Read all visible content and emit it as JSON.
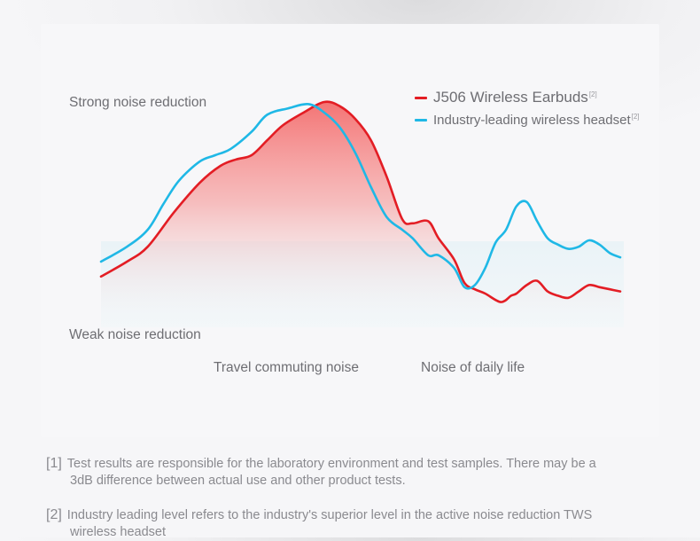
{
  "colors": {
    "earbuds": "#e31d24",
    "headset": "#1fb8e6",
    "fill_top": "#f47474",
    "fill_bottom": "#f6f6f8"
  },
  "chart_data": {
    "type": "line",
    "title": "",
    "ylabel": "",
    "xlabel": "",
    "y_axis_labels": {
      "high": "Strong noise reduction",
      "low": "Weak noise reduction"
    },
    "x_categories": [
      "Travel commuting noise",
      "Noise of daily life"
    ],
    "xlim": [
      0,
      100
    ],
    "ylim": [
      0,
      100
    ],
    "grid": false,
    "legend_position": "top-right",
    "series": [
      {
        "name": "J506 Wireless Earbuds",
        "note_ref": "[2]",
        "color": "#e31d24",
        "filled": true,
        "x": [
          0,
          5,
          9,
          14,
          19,
          23,
          26,
          29,
          32,
          35,
          39,
          43,
          46,
          49,
          52,
          55,
          58,
          60,
          63,
          65,
          68,
          70,
          72,
          74,
          77,
          79,
          80,
          82,
          84,
          86,
          88,
          90,
          92,
          94,
          96,
          98,
          100
        ],
        "y": [
          18,
          25,
          32,
          48,
          62,
          70,
          73,
          75,
          82,
          89,
          95,
          100,
          98,
          92,
          82,
          65,
          45,
          43,
          44,
          36,
          26,
          15,
          12,
          10,
          6,
          9,
          10,
          14,
          16,
          11,
          9,
          8,
          11,
          14,
          13,
          12,
          11
        ]
      },
      {
        "name": "Industry-leading wireless headset",
        "note_ref": "[2]",
        "color": "#1fb8e6",
        "filled": false,
        "x": [
          0,
          5,
          9,
          12,
          15,
          19,
          22,
          25,
          29,
          32,
          36,
          40,
          43,
          46,
          49,
          52,
          55,
          58,
          60,
          63,
          65,
          68,
          70,
          72,
          74,
          76,
          78,
          80,
          82,
          84,
          86,
          88,
          90,
          92,
          94,
          96,
          98,
          100
        ],
        "y": [
          25,
          32,
          40,
          52,
          63,
          72,
          75,
          78,
          86,
          94,
          97,
          99,
          95,
          88,
          76,
          60,
          46,
          40,
          36,
          28,
          28,
          22,
          13,
          14,
          22,
          34,
          40,
          51,
          53,
          44,
          36,
          33,
          31,
          32,
          35,
          33,
          29,
          27
        ]
      }
    ]
  },
  "notes": [
    {
      "marker": "[1]",
      "line1": "Test results are  responsible for the laboratory environment and test samples. There may be a",
      "line2": "3dB difference between actual use and other product tests."
    },
    {
      "marker": "[2]",
      "line1": "Industry leading level refers to the industry's superior level in the active noise reduction TWS",
      "line2": "wireless headset"
    }
  ]
}
